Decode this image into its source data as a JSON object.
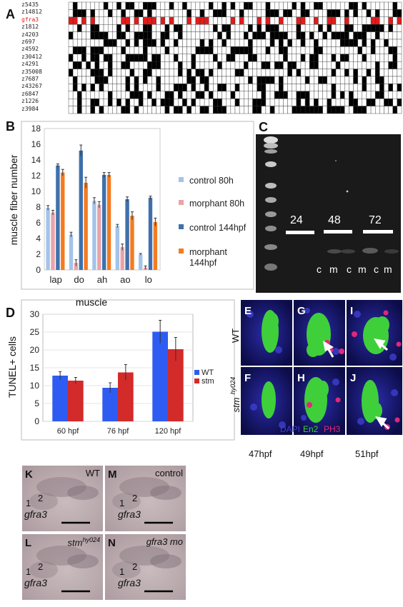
{
  "panels": {
    "A": {
      "label": "A",
      "rows": [
        "z5435",
        "z14812",
        "gfra3",
        "z1812",
        "z4203",
        "z697",
        "z4592",
        "z30412",
        "z4291",
        "z35008",
        "z7687",
        "z43267",
        "z6847",
        "z1226",
        "z3984"
      ],
      "highlight_row": "gfra3",
      "highlight_color": "#e21b1b",
      "n_columns": 76
    },
    "B": {
      "label": "B",
      "legend": [
        "control 80h",
        "morphant 80h",
        "control 144hpf",
        "morphant 144hpf"
      ]
    },
    "C": {
      "label": "C",
      "times": [
        "24",
        "48",
        "72"
      ],
      "lanes": [
        "c",
        "m",
        "c",
        "m",
        "c",
        "m"
      ]
    },
    "D": {
      "label": "D",
      "legend": [
        "WT",
        "stm"
      ]
    },
    "E_J": {
      "labels": [
        "E",
        "F",
        "G",
        "H",
        "I",
        "J"
      ],
      "row_labels": {
        "wt": "WT",
        "stm": "stm",
        "stm_sup": "hy024"
      },
      "stain": {
        "dapi": "DAPI",
        "en2": "En2",
        "ph3": "PH3"
      },
      "times": [
        "47hpf",
        "49hpf",
        "51hpf"
      ]
    },
    "K_N": [
      {
        "label": "K",
        "title": "WT",
        "title_sup": "",
        "n1": "1",
        "n2": "2",
        "gene": "gfra3"
      },
      {
        "label": "M",
        "title": "control",
        "title_sup": "",
        "n1": "1",
        "n2": "2",
        "gene": "gfra3"
      },
      {
        "label": "L",
        "title": "stm",
        "title_sup": "hy024",
        "n1": "1",
        "n2": "2",
        "gene": "gfra3"
      },
      {
        "label": "N",
        "title": "gfra3 mo",
        "title_sup": "",
        "n1": "1",
        "n2": "2",
        "gene": "gfra3"
      }
    ]
  },
  "chart_data": [
    {
      "type": "bar",
      "panel": "B",
      "categories": [
        "lap",
        "do",
        "ah",
        "ao",
        "lo"
      ],
      "xlabel": "muscle",
      "ylabel": "muscle fiber number",
      "ylim": [
        0,
        18
      ],
      "yticks": [
        0,
        2,
        4,
        6,
        8,
        10,
        12,
        14,
        16,
        18
      ],
      "series": [
        {
          "name": "control 80h",
          "values": [
            7.9,
            4.5,
            8.8,
            5.6,
            2.0
          ],
          "errors": [
            0.3,
            0.3,
            0.4,
            0.2,
            0.1
          ],
          "color": "#a3c3ea"
        },
        {
          "name": "morphant 80h",
          "values": [
            7.3,
            0.9,
            8.3,
            2.9,
            0.3
          ],
          "errors": [
            0.3,
            0.4,
            0.4,
            0.4,
            0.2
          ],
          "color": "#e9a3a8"
        },
        {
          "name": "control 144hpf",
          "values": [
            13.3,
            15.2,
            12.1,
            9.0,
            9.2
          ],
          "errors": [
            0.2,
            0.7,
            0.3,
            0.3,
            0.2
          ],
          "color": "#3f70ab"
        },
        {
          "name": "morphant 144hpf",
          "values": [
            12.4,
            11.1,
            12.1,
            6.9,
            6.1
          ],
          "errors": [
            0.4,
            0.7,
            0.3,
            0.5,
            0.5
          ],
          "color": "#f47b20"
        }
      ]
    },
    {
      "type": "bar",
      "panel": "D",
      "categories": [
        "60 hpf",
        "76 hpf",
        "120 hpf"
      ],
      "ylabel": "TUNEL+ cells",
      "ylim": [
        0,
        30
      ],
      "yticks": [
        0,
        5,
        10,
        15,
        20,
        25,
        30
      ],
      "series": [
        {
          "name": "WT",
          "values": [
            12.8,
            9.4,
            25.1
          ],
          "errors": [
            1.1,
            1.4,
            3.2
          ],
          "color": "#2e5bf1"
        },
        {
          "name": "stm",
          "values": [
            11.4,
            13.7,
            20.2
          ],
          "errors": [
            0.9,
            2.2,
            3.3
          ],
          "color": "#d32a2a"
        }
      ]
    }
  ]
}
